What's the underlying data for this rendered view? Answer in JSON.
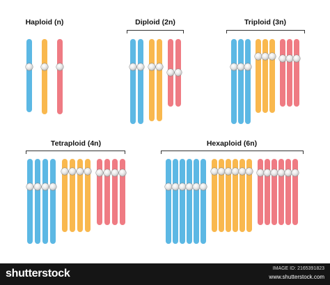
{
  "colors": {
    "blue": "#5cb8e4",
    "orange": "#f9b84e",
    "red": "#ef7b83",
    "bracket": "#333333",
    "centromere": "#d9d9d9"
  },
  "groups": [
    {
      "id": "haploid",
      "title": "Haploid (n)",
      "sets": 1
    },
    {
      "id": "diploid",
      "title": "Diploid (2n)",
      "sets": 2
    },
    {
      "id": "triploid",
      "title": "Triploid (3n)",
      "sets": 3
    },
    {
      "id": "tetraploid",
      "title": "Tetraploid (4n)",
      "sets": 4
    },
    {
      "id": "hexaploid",
      "title": "Hexaploid (6n)",
      "sets": 6
    }
  ],
  "chromosome_types": [
    {
      "color": "blue",
      "name": "long"
    },
    {
      "color": "orange",
      "name": "medium"
    },
    {
      "color": "red",
      "name": "short"
    }
  ],
  "footer": {
    "brand": "shutterstock",
    "image_id": "IMAGE ID: 2165391823",
    "site": "www.shutterstock.com"
  }
}
